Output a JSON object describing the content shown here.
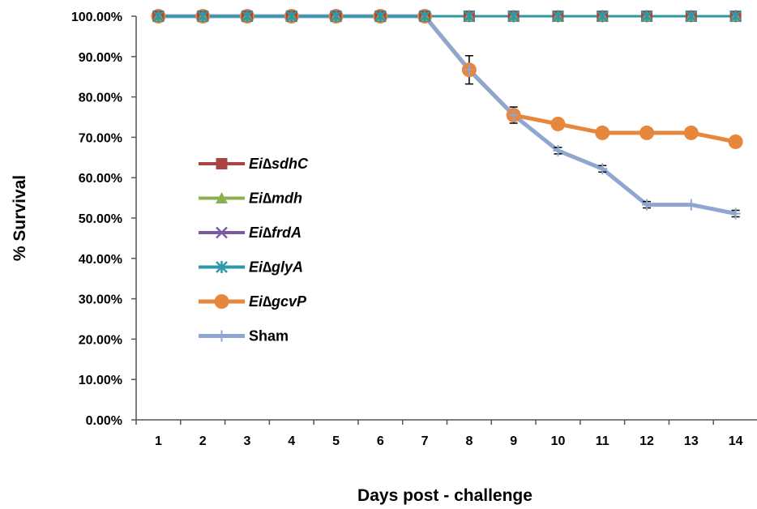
{
  "chart_data": {
    "type": "line",
    "title": "",
    "xlabel": "Days post - challenge",
    "ylabel": "% Survival",
    "categories": [
      "1",
      "2",
      "3",
      "4",
      "5",
      "6",
      "7",
      "8",
      "9",
      "10",
      "11",
      "12",
      "13",
      "14"
    ],
    "ylim": [
      0,
      100
    ],
    "yticks": [
      "0.00%",
      "10.00%",
      "20.00%",
      "30.00%",
      "40.00%",
      "50.00%",
      "60.00%",
      "70.00%",
      "80.00%",
      "90.00%",
      "100.00%"
    ],
    "grid": false,
    "legend_position": "left-middle",
    "series": [
      {
        "name": "Ei∆sdhC",
        "italic": true,
        "color": "#a94442",
        "marker": "square",
        "values": [
          100,
          100,
          100,
          100,
          100,
          100,
          100,
          100,
          100,
          100,
          100,
          100,
          100,
          100
        ]
      },
      {
        "name": "Ei∆mdh",
        "italic": true,
        "color": "#8db04f",
        "marker": "triangle",
        "values": [
          100,
          100,
          100,
          100,
          100,
          100,
          100,
          100,
          100,
          100,
          100,
          100,
          100,
          100
        ]
      },
      {
        "name": "Ei∆frdA",
        "italic": true,
        "color": "#7c5aa0",
        "marker": "x",
        "values": [
          100,
          100,
          100,
          100,
          100,
          100,
          100,
          100,
          100,
          100,
          100,
          100,
          100,
          100
        ]
      },
      {
        "name": "Ei∆glyA",
        "italic": true,
        "color": "#2e97a8",
        "marker": "star",
        "values": [
          100,
          100,
          100,
          100,
          100,
          100,
          100,
          100,
          100,
          100,
          100,
          100,
          100,
          100
        ]
      },
      {
        "name": "Ei∆gcvP",
        "italic": true,
        "color": "#e6873c",
        "marker": "circle",
        "values": [
          100,
          100,
          100,
          100,
          100,
          100,
          100,
          86.7,
          75.5,
          73.3,
          71.1,
          71.1,
          71.1,
          68.9
        ],
        "errors": [
          0,
          0,
          0,
          0,
          0,
          0,
          0,
          3.5,
          2.0,
          0,
          0,
          0,
          0,
          0
        ]
      },
      {
        "name": "Sham",
        "italic": false,
        "color": "#8fa6d0",
        "marker": "plus",
        "values": [
          100,
          100,
          100,
          100,
          100,
          100,
          100,
          86.7,
          75.5,
          66.7,
          62.2,
          53.3,
          53.3,
          51.1
        ],
        "errors": [
          0,
          0,
          0,
          0,
          0,
          0,
          0,
          0,
          0,
          0.8,
          0.8,
          0.8,
          0,
          0.8
        ]
      }
    ]
  }
}
